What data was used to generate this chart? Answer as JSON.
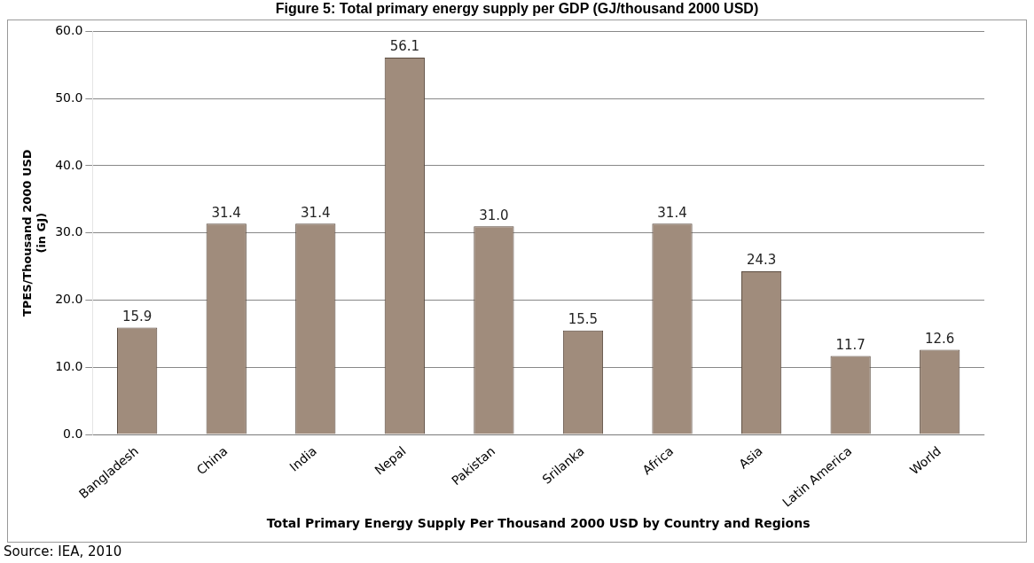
{
  "chart_data": {
    "type": "bar",
    "title": "Figure 5: Total primary energy supply per GDP (GJ/thousand 2000 USD)",
    "xlabel": "Total Primary Energy Supply Per Thousand 2000 USD by Country and Regions",
    "ylabel": "TPES/Thousand 2000 USD\n(in GJ)",
    "categories": [
      "Bangladesh",
      "China",
      "India",
      "Nepal",
      "Pakistan",
      "Srilanka",
      "Africa",
      "Asia",
      "Latin America",
      "World"
    ],
    "values": [
      15.9,
      31.4,
      31.4,
      56.1,
      31.0,
      15.5,
      31.4,
      24.3,
      11.7,
      12.6
    ],
    "value_labels": [
      "15.9",
      "31.4",
      "31.4",
      "56.1",
      "31.0",
      "15.5",
      "31.4",
      "24.3",
      "11.7",
      "12.6"
    ],
    "color": "#a08c7c",
    "ylim": [
      0,
      60
    ],
    "yticks": [
      {
        "value": 0,
        "label": "0.0"
      },
      {
        "value": 10,
        "label": "10.0"
      },
      {
        "value": 20,
        "label": "20.0"
      },
      {
        "value": 30,
        "label": "30.0"
      },
      {
        "value": 40,
        "label": "40.0"
      },
      {
        "value": 50,
        "label": "50.0"
      },
      {
        "value": 60,
        "label": "60.0"
      }
    ],
    "grid": "y",
    "annotations": [
      "Source: IEA, 2010"
    ]
  }
}
